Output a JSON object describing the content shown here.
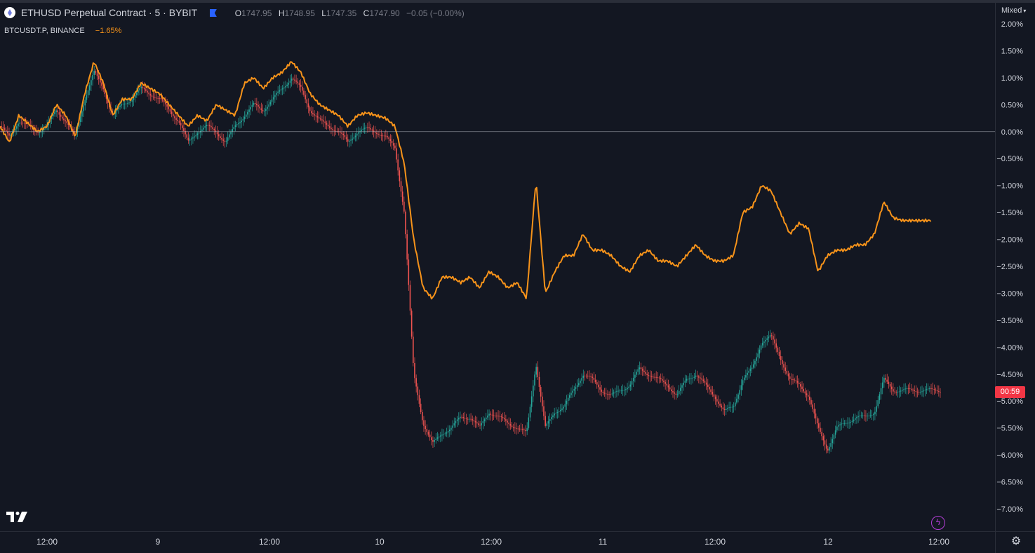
{
  "header": {
    "symbol_title": "ETHUSD Perpetual Contract · 5 · BYBIT",
    "ohlc": {
      "o_label": "O",
      "o": "1747.95",
      "h_label": "H",
      "h": "1748.95",
      "l_label": "L",
      "l": "1747.35",
      "c_label": "C",
      "c": "1747.90",
      "change": "−0.05 (−0.00%)"
    },
    "compare_symbol": "BTCUSDT.P, BINANCE",
    "compare_change": "−1.65%"
  },
  "price_scale": {
    "mode": "Mixed",
    "countdown": "00:59"
  },
  "colors": {
    "background": "#131722",
    "compare_line": "#f7931a",
    "candle_up": "#26a69a",
    "candle_down": "#ef5350",
    "badge": "#f23645",
    "zero_line": "#b2b5be"
  },
  "icons": {
    "symbol": "eth-logo-icon",
    "flag": "flag-icon",
    "brand": "tradingview-logo-icon",
    "lightning": "lightning-icon",
    "settings": "gear-icon"
  },
  "chart_data": {
    "type": "line",
    "title": "ETHUSD Perpetual Contract · 5 · BYBIT",
    "y_unit": "%",
    "ylim": [
      -7.0,
      2.0
    ],
    "y_ticks": [
      "2.00%",
      "1.50%",
      "1.00%",
      "0.50%",
      "0.00%",
      "−0.50%",
      "−1.00%",
      "−1.50%",
      "−2.00%",
      "−2.50%",
      "−3.00%",
      "−3.50%",
      "−4.00%",
      "−4.50%",
      "−5.00%",
      "−5.50%",
      "−6.00%",
      "−6.50%",
      "−7.00%"
    ],
    "x_ticks": [
      "12:00",
      "9",
      "12:00",
      "10",
      "12:00",
      "11",
      "12:00",
      "12",
      "12:00"
    ],
    "grid": false,
    "zero_line": true,
    "series": [
      {
        "name": "BTCUSDT.P, BINANCE",
        "style": "line",
        "x": [
          0,
          0.01,
          0.02,
          0.03,
          0.04,
          0.05,
          0.06,
          0.07,
          0.08,
          0.09,
          0.1,
          0.11,
          0.12,
          0.13,
          0.14,
          0.15,
          0.16,
          0.17,
          0.18,
          0.19,
          0.2,
          0.21,
          0.22,
          0.23,
          0.24,
          0.25,
          0.26,
          0.27,
          0.28,
          0.29,
          0.3,
          0.31,
          0.32,
          0.33,
          0.34,
          0.35,
          0.36,
          0.37,
          0.38,
          0.39,
          0.4,
          0.41,
          0.42,
          0.43,
          0.44,
          0.45,
          0.46,
          0.47,
          0.48,
          0.49,
          0.5,
          0.51,
          0.52,
          0.53,
          0.54,
          0.55,
          0.56,
          0.57,
          0.58,
          0.59,
          0.6,
          0.61,
          0.62,
          0.63,
          0.64,
          0.65,
          0.66,
          0.67,
          0.68,
          0.69,
          0.7,
          0.71,
          0.72,
          0.73,
          0.74,
          0.75,
          0.76,
          0.77,
          0.78,
          0.79,
          0.8,
          0.81,
          0.82,
          0.83,
          0.84,
          0.85,
          0.86,
          0.87,
          0.88,
          0.89,
          0.9,
          0.91,
          0.92,
          0.93,
          0.94,
          0.95,
          0.96,
          0.97,
          0.98,
          0.99,
          1.0
        ],
        "y": [
          0.1,
          -0.2,
          0.3,
          0.15,
          0.0,
          0.1,
          0.5,
          0.3,
          -0.1,
          0.7,
          1.3,
          0.9,
          0.3,
          0.6,
          0.6,
          0.9,
          0.8,
          0.7,
          0.5,
          0.3,
          0.1,
          0.3,
          0.2,
          0.5,
          0.4,
          0.3,
          0.9,
          1.0,
          0.8,
          1.0,
          1.1,
          1.3,
          1.1,
          0.7,
          0.5,
          0.4,
          0.3,
          0.1,
          0.3,
          0.35,
          0.3,
          0.25,
          0.1,
          -0.6,
          -2.0,
          -2.9,
          -3.1,
          -2.7,
          -2.7,
          -2.8,
          -2.7,
          -2.9,
          -2.6,
          -2.7,
          -2.9,
          -2.8,
          -3.1,
          -0.9,
          -3.0,
          -2.6,
          -2.3,
          -2.3,
          -1.9,
          -2.2,
          -2.2,
          -2.3,
          -2.5,
          -2.6,
          -2.3,
          -2.2,
          -2.4,
          -2.4,
          -2.5,
          -2.3,
          -2.1,
          -2.3,
          -2.4,
          -2.4,
          -2.3,
          -1.5,
          -1.4,
          -1.0,
          -1.1,
          -1.5,
          -1.9,
          -1.7,
          -1.8,
          -2.6,
          -2.3,
          -2.2,
          -2.2,
          -2.1,
          -2.1,
          -1.9,
          -1.3,
          -1.6,
          -1.65,
          -1.65,
          -1.65,
          -1.65,
          -1.65
        ]
      },
      {
        "name": "ETHUSD Perpetual Contract · 5 · BYBIT",
        "style": "candles",
        "x": [
          0,
          0.01,
          0.02,
          0.03,
          0.04,
          0.05,
          0.06,
          0.07,
          0.08,
          0.09,
          0.1,
          0.11,
          0.12,
          0.13,
          0.14,
          0.15,
          0.16,
          0.17,
          0.18,
          0.19,
          0.2,
          0.21,
          0.22,
          0.23,
          0.24,
          0.25,
          0.26,
          0.27,
          0.28,
          0.29,
          0.3,
          0.31,
          0.32,
          0.33,
          0.34,
          0.35,
          0.36,
          0.37,
          0.38,
          0.39,
          0.4,
          0.41,
          0.42,
          0.43,
          0.44,
          0.45,
          0.46,
          0.47,
          0.48,
          0.49,
          0.5,
          0.51,
          0.52,
          0.53,
          0.54,
          0.55,
          0.56,
          0.57,
          0.58,
          0.59,
          0.6,
          0.61,
          0.62,
          0.63,
          0.64,
          0.65,
          0.66,
          0.67,
          0.68,
          0.69,
          0.7,
          0.71,
          0.72,
          0.73,
          0.74,
          0.75,
          0.76,
          0.77,
          0.78,
          0.79,
          0.8,
          0.81,
          0.82,
          0.83,
          0.84,
          0.85,
          0.86,
          0.87,
          0.88,
          0.89,
          0.9,
          0.91,
          0.92,
          0.93,
          0.94,
          0.95,
          0.96,
          0.97,
          0.98,
          0.99,
          1.0
        ],
        "y": [
          0.1,
          -0.1,
          0.2,
          0.1,
          0.0,
          0.1,
          0.4,
          0.2,
          -0.1,
          0.6,
          1.1,
          0.8,
          0.3,
          0.5,
          0.6,
          0.8,
          0.7,
          0.6,
          0.4,
          0.2,
          -0.2,
          0.0,
          0.1,
          0.0,
          -0.2,
          0.1,
          0.3,
          0.5,
          0.4,
          0.6,
          0.8,
          1.0,
          0.8,
          0.4,
          0.2,
          0.1,
          0.0,
          -0.2,
          0.0,
          0.05,
          0.0,
          -0.1,
          -0.3,
          -1.5,
          -4.5,
          -5.4,
          -5.8,
          -5.6,
          -5.5,
          -5.3,
          -5.3,
          -5.5,
          -5.2,
          -5.3,
          -5.4,
          -5.5,
          -5.6,
          -4.3,
          -5.5,
          -5.2,
          -5.1,
          -4.8,
          -4.5,
          -4.6,
          -4.8,
          -4.9,
          -4.8,
          -4.7,
          -4.4,
          -4.5,
          -4.6,
          -4.7,
          -4.9,
          -4.6,
          -4.5,
          -4.7,
          -4.9,
          -5.2,
          -5.1,
          -4.6,
          -4.4,
          -3.9,
          -3.8,
          -4.2,
          -4.6,
          -4.7,
          -4.9,
          -5.5,
          -5.9,
          -5.5,
          -5.4,
          -5.3,
          -5.3,
          -5.2,
          -4.6,
          -4.8,
          -4.8,
          -4.8,
          -4.8,
          -4.8,
          -4.8
        ]
      }
    ]
  }
}
